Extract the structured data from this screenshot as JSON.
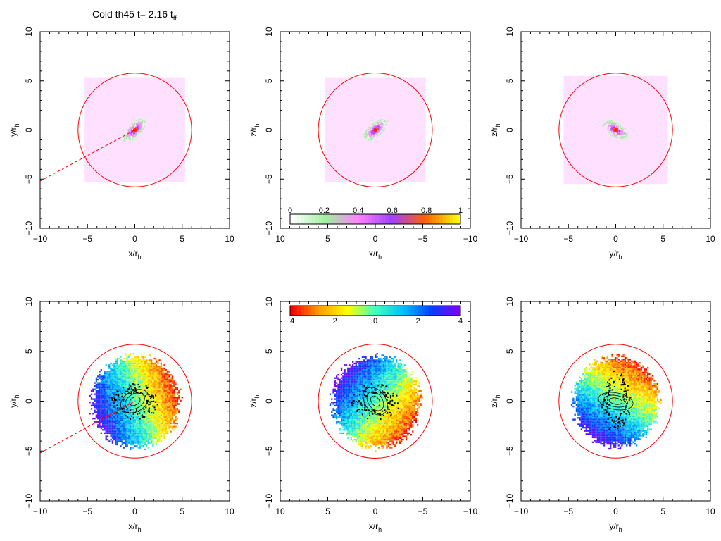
{
  "title": {
    "main": "Cold th45 t= 2.16 t",
    "sub": "ff"
  },
  "chart_data": [
    {
      "type": "heatmap",
      "panel": "density-xy",
      "xlabel": "x/r",
      "xlabel_sub": "h",
      "ylabel": "y/r",
      "ylabel_sub": "h",
      "xlim": [
        -10,
        10
      ],
      "ylim": [
        -10,
        10
      ],
      "x_ticks": [
        -10,
        -5,
        0,
        5,
        10
      ],
      "y_ticks": [
        -10,
        -5,
        0,
        5,
        10
      ],
      "x_tick_labels": [
        "−10",
        "−5",
        "0",
        "5",
        "10"
      ],
      "y_tick_labels": [
        "−10",
        "−5",
        "0",
        "5",
        "10"
      ],
      "circle_radius": 6,
      "box_halfwidth": 5.3,
      "blob_angle": 45,
      "dashed_line": true
    },
    {
      "type": "heatmap",
      "panel": "density-xz",
      "xlabel": "x/r",
      "xlabel_sub": "h",
      "ylabel": "z/r",
      "ylabel_sub": "h",
      "xlim": [
        10,
        -10
      ],
      "ylim": [
        -10,
        10
      ],
      "x_ticks": [
        10,
        5,
        0,
        -5,
        -10
      ],
      "y_ticks": [
        -10,
        -5,
        0,
        5,
        10
      ],
      "x_tick_labels": [
        "10",
        "5",
        "0",
        "−5",
        "−10"
      ],
      "y_tick_labels": [
        "−10",
        "−5",
        "0",
        "5",
        "10"
      ],
      "circle_radius": 6,
      "box_halfwidth": 5.3,
      "blob_angle": 40,
      "dashed_line": false
    },
    {
      "type": "heatmap",
      "panel": "density-yz",
      "xlabel": "y/r",
      "xlabel_sub": "h",
      "ylabel": "z/r",
      "ylabel_sub": "h",
      "xlim": [
        -10,
        10
      ],
      "ylim": [
        -10,
        10
      ],
      "x_ticks": [
        -10,
        -5,
        0,
        5,
        10
      ],
      "y_ticks": [
        -10,
        -5,
        0,
        5,
        10
      ],
      "x_tick_labels": [
        "−10",
        "−5",
        "0",
        "5",
        "10"
      ],
      "y_tick_labels": [
        "−10",
        "−5",
        "0",
        "5",
        "10"
      ],
      "circle_radius": 6,
      "box_halfwidth": 5.5,
      "blob_angle": -30,
      "dashed_line": false
    },
    {
      "type": "heatmap",
      "panel": "velocity-xy",
      "xlabel": "x/r",
      "xlabel_sub": "h",
      "ylabel": "y/r",
      "ylabel_sub": "h",
      "xlim": [
        -10,
        10
      ],
      "ylim": [
        -10,
        10
      ],
      "x_ticks": [
        -10,
        -5,
        0,
        5,
        10
      ],
      "y_ticks": [
        -10,
        -5,
        0,
        5,
        10
      ],
      "x_tick_labels": [
        "−10",
        "−5",
        "0",
        "5",
        "10"
      ],
      "y_tick_labels": [
        "−10",
        "−5",
        "0",
        "5",
        "10"
      ],
      "circle_radius": 6,
      "cloud_radius": 5.0,
      "gradient_angle": 20,
      "dashed_line": true
    },
    {
      "type": "heatmap",
      "panel": "velocity-xz",
      "xlabel": "x/r",
      "xlabel_sub": "h",
      "ylabel": "z/r",
      "ylabel_sub": "h",
      "xlim": [
        10,
        -10
      ],
      "ylim": [
        -10,
        10
      ],
      "x_ticks": [
        10,
        5,
        0,
        -5,
        -10
      ],
      "y_ticks": [
        -10,
        -5,
        0,
        5,
        10
      ],
      "x_tick_labels": [
        "10",
        "5",
        "0",
        "−5",
        "−10"
      ],
      "y_tick_labels": [
        "−10",
        "−5",
        "0",
        "5",
        "10"
      ],
      "circle_radius": 6,
      "cloud_radius": 5.0,
      "gradient_angle": -40,
      "dashed_line": false
    },
    {
      "type": "heatmap",
      "panel": "velocity-yz",
      "xlabel": "y/r",
      "xlabel_sub": "h",
      "ylabel": "z/r",
      "ylabel_sub": "h",
      "xlim": [
        -10,
        10
      ],
      "ylim": [
        -10,
        10
      ],
      "x_ticks": [
        -10,
        -5,
        0,
        5,
        10
      ],
      "y_ticks": [
        -10,
        -5,
        0,
        5,
        10
      ],
      "x_tick_labels": [
        "−10",
        "−5",
        "0",
        "5",
        "10"
      ],
      "y_tick_labels": [
        "−10",
        "−5",
        "0",
        "5",
        "10"
      ],
      "circle_radius": 6,
      "cloud_radius": 4.9,
      "gradient_angle": 60,
      "dashed_line": false
    }
  ],
  "colorbars": [
    {
      "name": "density-colorbar",
      "range": [
        0,
        1
      ],
      "ticks": [
        0,
        0.2,
        0.4,
        0.6,
        0.8,
        1
      ],
      "tick_labels": [
        "0",
        "0.2",
        "0.4",
        "0.6",
        "0.8",
        "1"
      ],
      "label_position": "top"
    },
    {
      "name": "velocity-colorbar",
      "range": [
        -4,
        4
      ],
      "ticks": [
        -4,
        -2,
        0,
        2,
        4
      ],
      "tick_labels": [
        "−4",
        "−2",
        "0",
        "2",
        "4"
      ],
      "label_position": "bottom"
    }
  ],
  "colors": {
    "circle": "#ff0000",
    "box": "#ffe0ff",
    "density_stops": [
      "#ffffff",
      "#a0f0a0",
      "#ff80ff",
      "#a040ff",
      "#ff6000",
      "#ffff00"
    ],
    "velocity_stops": [
      "#ff0000",
      "#ffa000",
      "#ffff00",
      "#40ffc0",
      "#00c0ff",
      "#0040ff",
      "#8000ff"
    ],
    "contour": "#000000"
  }
}
